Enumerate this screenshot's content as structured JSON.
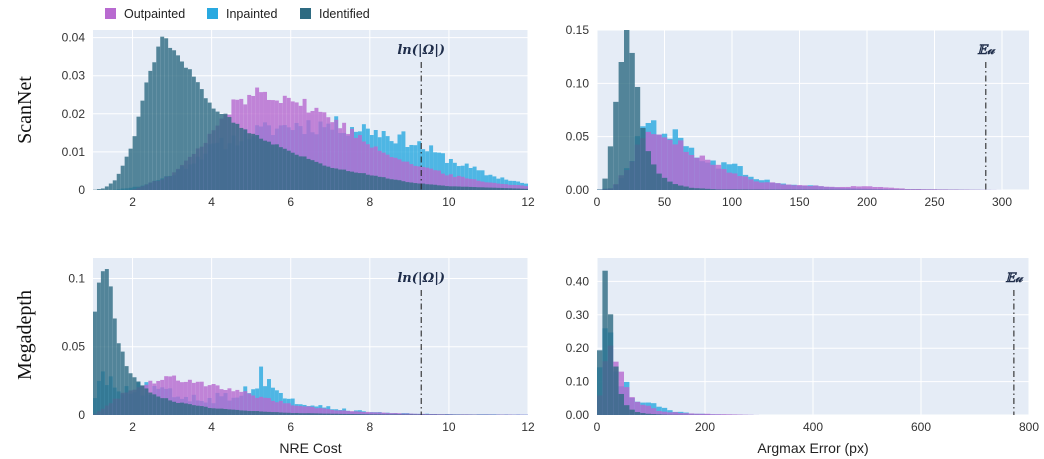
{
  "legend": [
    {
      "label": "Outpainted",
      "color": "#b86ad0"
    },
    {
      "label": "Inpainted",
      "color": "#29a9e0"
    },
    {
      "label": "Identified",
      "color": "#2e6b82"
    }
  ],
  "row_labels": [
    "ScanNet",
    "Megadepth"
  ],
  "chart_data": [
    {
      "type": "histogram",
      "row": "ScanNet",
      "xlabel": "",
      "xlim": [
        1,
        12
      ],
      "ylim": [
        0,
        0.042
      ],
      "xticks": [
        2,
        4,
        6,
        8,
        10,
        12
      ],
      "xtick_labels": [
        "2",
        "4",
        "6",
        "8",
        "10",
        "12"
      ],
      "yticks": [
        0,
        0.01,
        0.02,
        0.03,
        0.04
      ],
      "ytick_labels": [
        "0",
        "0.01",
        "0.02",
        "0.03",
        "0.04"
      ],
      "grid": true,
      "vline": {
        "x": 9.3,
        "label": "ln(|Ω|)"
      },
      "bins": {
        "start": 1.0,
        "width": 0.1,
        "count": 110
      },
      "series": [
        {
          "name": "Inpainted",
          "color": "#29a9e0",
          "shape": [
            [
              1.0,
              0
            ],
            [
              1.5,
              0
            ],
            [
              2.2,
              0.001
            ],
            [
              3.0,
              0.004
            ],
            [
              4.0,
              0.011
            ],
            [
              5.0,
              0.015
            ],
            [
              6.0,
              0.017
            ],
            [
              7.0,
              0.017
            ],
            [
              8.0,
              0.016
            ],
            [
              9.0,
              0.013
            ],
            [
              10.0,
              0.008
            ],
            [
              11.0,
              0.004
            ],
            [
              12.0,
              0.0015
            ]
          ],
          "noise": 0.15
        },
        {
          "name": "Outpainted",
          "color": "#b86ad0",
          "shape": [
            [
              1.0,
              0
            ],
            [
              2.0,
              0
            ],
            [
              3.0,
              0.004
            ],
            [
              3.8,
              0.012
            ],
            [
              4.5,
              0.022
            ],
            [
              5.2,
              0.026
            ],
            [
              6.0,
              0.024
            ],
            [
              7.0,
              0.019
            ],
            [
              8.0,
              0.012
            ],
            [
              9.0,
              0.007
            ],
            [
              10.0,
              0.004
            ],
            [
              11.0,
              0.002
            ],
            [
              12.0,
              0.001
            ]
          ],
          "noise": 0.08
        },
        {
          "name": "Identified",
          "color": "#2e6b82",
          "shape": [
            [
              1.0,
              0
            ],
            [
              1.3,
              0.0005
            ],
            [
              1.6,
              0.003
            ],
            [
              2.0,
              0.012
            ],
            [
              2.4,
              0.03
            ],
            [
              2.75,
              0.04
            ],
            [
              3.0,
              0.038
            ],
            [
              3.5,
              0.03
            ],
            [
              4.0,
              0.022
            ],
            [
              5.0,
              0.015
            ],
            [
              6.0,
              0.01
            ],
            [
              7.0,
              0.006
            ],
            [
              8.0,
              0.004
            ],
            [
              9.0,
              0.002
            ],
            [
              10.0,
              0.001
            ],
            [
              12.0,
              0.0003
            ]
          ],
          "noise": 0.03
        }
      ]
    },
    {
      "type": "histogram",
      "row": "ScanNet",
      "xlabel": "",
      "xlim": [
        0,
        320
      ],
      "ylim": [
        0,
        0.15
      ],
      "xticks": [
        0,
        50,
        100,
        150,
        200,
        250,
        300
      ],
      "xtick_labels": [
        "0",
        "50",
        "100",
        "150",
        "200",
        "250",
        "300"
      ],
      "yticks": [
        0,
        0.05,
        0.1,
        0.15
      ],
      "ytick_labels": [
        "0.00",
        "0.05",
        "0.10",
        "0.15"
      ],
      "grid": true,
      "vline": {
        "x": 288,
        "label": "𝔼𝓊"
      },
      "bins": {
        "start": 0,
        "width": 4,
        "count": 75
      },
      "series": [
        {
          "name": "Inpainted",
          "color": "#29a9e0",
          "shape": [
            [
              0,
              0
            ],
            [
              12,
              0.002
            ],
            [
              22,
              0.02
            ],
            [
              32,
              0.05
            ],
            [
              42,
              0.065
            ],
            [
              52,
              0.058
            ],
            [
              64,
              0.042
            ],
            [
              76,
              0.032
            ],
            [
              90,
              0.025
            ],
            [
              105,
              0.02
            ],
            [
              120,
              0.01
            ],
            [
              140,
              0.005
            ],
            [
              160,
              0.004
            ],
            [
              180,
              0.002
            ],
            [
              220,
              0.0005
            ],
            [
              300,
              0
            ]
          ],
          "noise": 0.2
        },
        {
          "name": "Outpainted",
          "color": "#b86ad0",
          "shape": [
            [
              0,
              0
            ],
            [
              12,
              0.002
            ],
            [
              22,
              0.02
            ],
            [
              32,
              0.045
            ],
            [
              42,
              0.055
            ],
            [
              52,
              0.05
            ],
            [
              64,
              0.04
            ],
            [
              76,
              0.03
            ],
            [
              90,
              0.022
            ],
            [
              105,
              0.015
            ],
            [
              120,
              0.008
            ],
            [
              140,
              0.005
            ],
            [
              160,
              0.004
            ],
            [
              180,
              0.003
            ],
            [
              200,
              0.0035
            ],
            [
              230,
              0.001
            ],
            [
              260,
              0.0005
            ],
            [
              300,
              0
            ]
          ],
          "noise": 0.12
        },
        {
          "name": "Identified",
          "color": "#2e6b82",
          "shape": [
            [
              0,
              0
            ],
            [
              4,
              0.001
            ],
            [
              8,
              0.02
            ],
            [
              14,
              0.08
            ],
            [
              20,
              0.14
            ],
            [
              24,
              0.15
            ],
            [
              28,
              0.12
            ],
            [
              32,
              0.07
            ],
            [
              38,
              0.035
            ],
            [
              46,
              0.015
            ],
            [
              56,
              0.006
            ],
            [
              70,
              0.002
            ],
            [
              90,
              0.0005
            ],
            [
              300,
              0
            ]
          ],
          "noise": 0.05
        }
      ]
    },
    {
      "type": "histogram",
      "row": "Megadepth",
      "xlabel": "NRE Cost",
      "xlim": [
        1,
        12
      ],
      "ylim": [
        0,
        0.115
      ],
      "xticks": [
        2,
        4,
        6,
        8,
        10,
        12
      ],
      "xtick_labels": [
        "2",
        "4",
        "6",
        "8",
        "10",
        "12"
      ],
      "yticks": [
        0,
        0.05,
        0.1
      ],
      "ytick_labels": [
        "0",
        "0.05",
        "0.1"
      ],
      "grid": true,
      "vline": {
        "x": 9.3,
        "label": "ln(|Ω|)"
      },
      "bins": {
        "start": 1.0,
        "width": 0.1,
        "count": 110
      },
      "series": [
        {
          "name": "Inpainted",
          "color": "#29a9e0",
          "shape": [
            [
              1.0,
              0.015
            ],
            [
              1.3,
              0.03
            ],
            [
              1.6,
              0.022
            ],
            [
              2.0,
              0.02
            ],
            [
              2.5,
              0.018
            ],
            [
              3.0,
              0.015
            ],
            [
              3.5,
              0.013
            ],
            [
              4.0,
              0.012
            ],
            [
              4.5,
              0.014
            ],
            [
              5.0,
              0.02
            ],
            [
              5.3,
              0.03
            ],
            [
              5.6,
              0.02
            ],
            [
              6.0,
              0.01
            ],
            [
              7.0,
              0.005
            ],
            [
              8.0,
              0.002
            ],
            [
              9.0,
              0.001
            ],
            [
              10.0,
              0.0005
            ],
            [
              12.0,
              0.0003
            ]
          ],
          "noise": 0.3
        },
        {
          "name": "Outpainted",
          "color": "#b86ad0",
          "shape": [
            [
              1.0,
              0
            ],
            [
              1.5,
              0.01
            ],
            [
              2.0,
              0.02
            ],
            [
              2.5,
              0.025
            ],
            [
              3.0,
              0.027
            ],
            [
              3.5,
              0.026
            ],
            [
              4.0,
              0.022
            ],
            [
              4.5,
              0.018
            ],
            [
              5.0,
              0.015
            ],
            [
              5.5,
              0.011
            ],
            [
              6.0,
              0.008
            ],
            [
              7.0,
              0.004
            ],
            [
              8.0,
              0.002
            ],
            [
              9.0,
              0.001
            ],
            [
              10.0,
              0.0005
            ],
            [
              12.0,
              0.0002
            ]
          ],
          "noise": 0.1
        },
        {
          "name": "Identified",
          "color": "#2e6b82",
          "shape": [
            [
              1.0,
              0.07
            ],
            [
              1.15,
              0.098
            ],
            [
              1.3,
              0.11
            ],
            [
              1.45,
              0.09
            ],
            [
              1.6,
              0.06
            ],
            [
              1.8,
              0.04
            ],
            [
              2.0,
              0.028
            ],
            [
              2.5,
              0.016
            ],
            [
              3.0,
              0.01
            ],
            [
              4.0,
              0.005
            ],
            [
              5.0,
              0.003
            ],
            [
              6.0,
              0.0015
            ],
            [
              8.0,
              0.0005
            ],
            [
              12.0,
              0
            ]
          ],
          "noise": 0.05
        }
      ]
    },
    {
      "type": "histogram",
      "row": "Megadepth",
      "xlabel": "Argmax Error (px)",
      "xlim": [
        0,
        800
      ],
      "ylim": [
        0,
        0.47
      ],
      "xticks": [
        0,
        200,
        400,
        600,
        800
      ],
      "xtick_labels": [
        "0",
        "200",
        "400",
        "600",
        "800"
      ],
      "yticks": [
        0,
        0.1,
        0.2,
        0.3,
        0.4
      ],
      "ytick_labels": [
        "0.00",
        "0.10",
        "0.20",
        "0.30",
        "0.40"
      ],
      "grid": true,
      "vline": {
        "x": 772,
        "label": "𝔼𝓊"
      },
      "bins": {
        "start": 0,
        "width": 10,
        "count": 80
      },
      "series": [
        {
          "name": "Inpainted",
          "color": "#29a9e0",
          "shape": [
            [
              0,
              0.05
            ],
            [
              10,
              0.25
            ],
            [
              20,
              0.3
            ],
            [
              30,
              0.2
            ],
            [
              40,
              0.12
            ],
            [
              55,
              0.08
            ],
            [
              70,
              0.05
            ],
            [
              90,
              0.04
            ],
            [
              110,
              0.025
            ],
            [
              140,
              0.01
            ],
            [
              180,
              0.004
            ],
            [
              240,
              0.001
            ],
            [
              300,
              0
            ]
          ],
          "noise": 0.25
        },
        {
          "name": "Outpainted",
          "color": "#b86ad0",
          "shape": [
            [
              0,
              0.02
            ],
            [
              10,
              0.1
            ],
            [
              20,
              0.2
            ],
            [
              30,
              0.18
            ],
            [
              40,
              0.14
            ],
            [
              55,
              0.08
            ],
            [
              70,
              0.05
            ],
            [
              90,
              0.03
            ],
            [
              110,
              0.015
            ],
            [
              140,
              0.008
            ],
            [
              180,
              0.004
            ],
            [
              240,
              0.002
            ],
            [
              300,
              0
            ]
          ],
          "noise": 0.15
        },
        {
          "name": "Identified",
          "color": "#2e6b82",
          "shape": [
            [
              0,
              0.02
            ],
            [
              8,
              0.3
            ],
            [
              14,
              0.46
            ],
            [
              22,
              0.38
            ],
            [
              30,
              0.2
            ],
            [
              40,
              0.08
            ],
            [
              55,
              0.03
            ],
            [
              70,
              0.01
            ],
            [
              90,
              0.004
            ],
            [
              130,
              0.001
            ],
            [
              200,
              0
            ]
          ],
          "noise": 0.05
        }
      ]
    }
  ]
}
